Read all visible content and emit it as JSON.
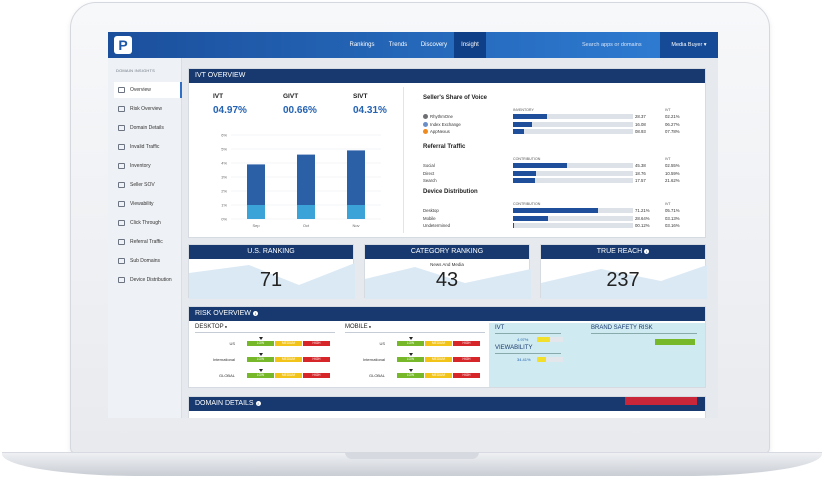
{
  "topbar": {
    "logo": "P",
    "nav": [
      "Rankings",
      "Trends",
      "Discovery",
      "Insight"
    ],
    "search_placeholder": "Search apps or domains",
    "user_menu": "Media Buyer ▾"
  },
  "sidebar": {
    "title": "DOMAIN INSIGHTS",
    "items": [
      "Overview",
      "Risk Overview",
      "Domain Details",
      "Invalid Traffic",
      "Inventory",
      "Seller SOV",
      "Viewability",
      "Click Through",
      "Referral Traffic",
      "Sub Domains",
      "Device Distribution"
    ]
  },
  "ivt_overview": {
    "title": "IVT OVERVIEW",
    "kpis": [
      {
        "label": "IVT",
        "value": "04.97%"
      },
      {
        "label": "GIVT",
        "value": "00.66%"
      },
      {
        "label": "SIVT",
        "value": "04.31%"
      }
    ],
    "chart_data": {
      "type": "bar",
      "categories": [
        "Sep",
        "Oct",
        "Nov"
      ],
      "series": [
        {
          "values": [
            1.0,
            1.0,
            1.0
          ]
        },
        {
          "values": [
            2.9,
            3.6,
            3.9
          ]
        }
      ],
      "y_ticks": [
        "0%",
        "1%",
        "2%",
        "3%",
        "4%",
        "5%",
        "6%"
      ],
      "ylim": [
        0,
        6
      ],
      "stacked": true,
      "colors": [
        "#3ba3d8",
        "#2b5fa6"
      ]
    },
    "seller_share": {
      "title": "Seller's Share of Voice",
      "col_inventory": "INVENTORY",
      "col_ivt": "IVT",
      "rows": [
        {
          "name": "RhythmOne",
          "value": "28.37",
          "ivt": "02.21%",
          "fill": 0.28
        },
        {
          "name": "Index Exchange",
          "value": "16.08",
          "ivt": "06.27%",
          "fill": 0.16
        },
        {
          "name": "AppNexus",
          "value": "08.93",
          "ivt": "07.78%",
          "fill": 0.09
        }
      ]
    },
    "referral": {
      "title": "Referral Traffic",
      "col_contribution": "CONTRIBUTION",
      "col_ivt": "IVT",
      "rows": [
        {
          "name": "Social",
          "value": "45.38",
          "ivt": "02.55%",
          "fill": 0.45
        },
        {
          "name": "Direct",
          "value": "18.76",
          "ivt": "10.59%",
          "fill": 0.19
        },
        {
          "name": "Search",
          "value": "17.57",
          "ivt": "21.62%",
          "fill": 0.18
        }
      ]
    },
    "device": {
      "title": "Device Distribution",
      "col_contribution": "CONTRIBUTION",
      "col_ivt": "IVT",
      "rows": [
        {
          "name": "Desktop",
          "value": "71.21%",
          "ivt": "05.71%",
          "fill": 0.71
        },
        {
          "name": "Mobile",
          "value": "28.64%",
          "ivt": "03.13%",
          "fill": 0.29
        },
        {
          "name": "Undetermined",
          "value": "00.12%",
          "ivt": "03.16%",
          "fill": 0.01
        }
      ]
    }
  },
  "rankings": [
    {
      "title": "U.S. RANKING",
      "sub": "",
      "value": "71"
    },
    {
      "title": "CATEGORY RANKING",
      "sub": "News And Media",
      "value": "43"
    },
    {
      "title": "TRUE REACH",
      "sub": "",
      "value": "237"
    }
  ],
  "risk": {
    "title": "RISK OVERVIEW",
    "desktop_title": "DESKTOP",
    "mobile_title": "MOBILE",
    "rows": [
      "US",
      "International",
      "GLOBAL"
    ],
    "levels": [
      "LOW",
      "MEDIUM",
      "HIGH"
    ],
    "ivt_title": "IVT",
    "ivt_value": "4.97%",
    "ivt_fill": 0.5,
    "viewability_title": "VIEWABILITY",
    "viewability_value": "34.41%",
    "viewability_fill": 0.34,
    "brand_safety_title": "BRAND SAFETY RISK"
  },
  "domain_details": {
    "title": "DOMAIN DETAILS"
  },
  "colors": {
    "low": "#76b82a",
    "medium": "#f2c318",
    "high": "#d6262a",
    "navy": "#17396f",
    "bar": "#1f4f9a"
  }
}
